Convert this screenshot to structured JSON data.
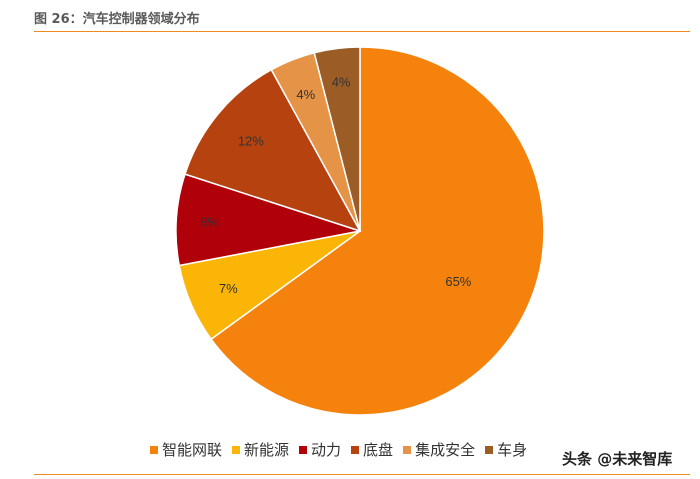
{
  "figure": {
    "title": "图 26：汽车控制器领域分布",
    "watermark": "头条 @未来智库"
  },
  "chart_data": {
    "type": "pie",
    "title": "图 26：汽车控制器领域分布",
    "legend_position": "bottom",
    "series": [
      {
        "name": "智能网联",
        "value": 65,
        "label": "65%",
        "color": "#f5820d"
      },
      {
        "name": "新能源",
        "value": 7,
        "label": "7%",
        "color": "#fbb507"
      },
      {
        "name": "动力",
        "value": 8,
        "label": "8%",
        "color": "#b0000a"
      },
      {
        "name": "底盘",
        "value": 12,
        "label": "12%",
        "color": "#b5420f"
      },
      {
        "name": "集成安全",
        "value": 4,
        "label": "4%",
        "color": "#e59346"
      },
      {
        "name": "车身",
        "value": 4,
        "label": "4%",
        "color": "#9b5c25"
      }
    ]
  }
}
